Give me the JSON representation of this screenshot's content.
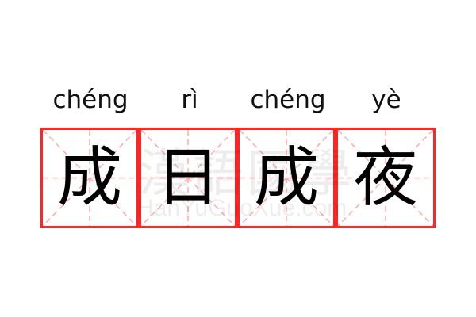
{
  "pinyin": [
    "chéng",
    "rì",
    "chéng",
    "yè"
  ],
  "characters": [
    "成",
    "日",
    "成",
    "夜"
  ],
  "watermark": {
    "chinese": "漢語國學",
    "latin": "HanYuGuoXue.com"
  },
  "colors": {
    "grid_border": "#ff2525",
    "guide_lines": "#ffaaaa",
    "text": "#000000"
  }
}
